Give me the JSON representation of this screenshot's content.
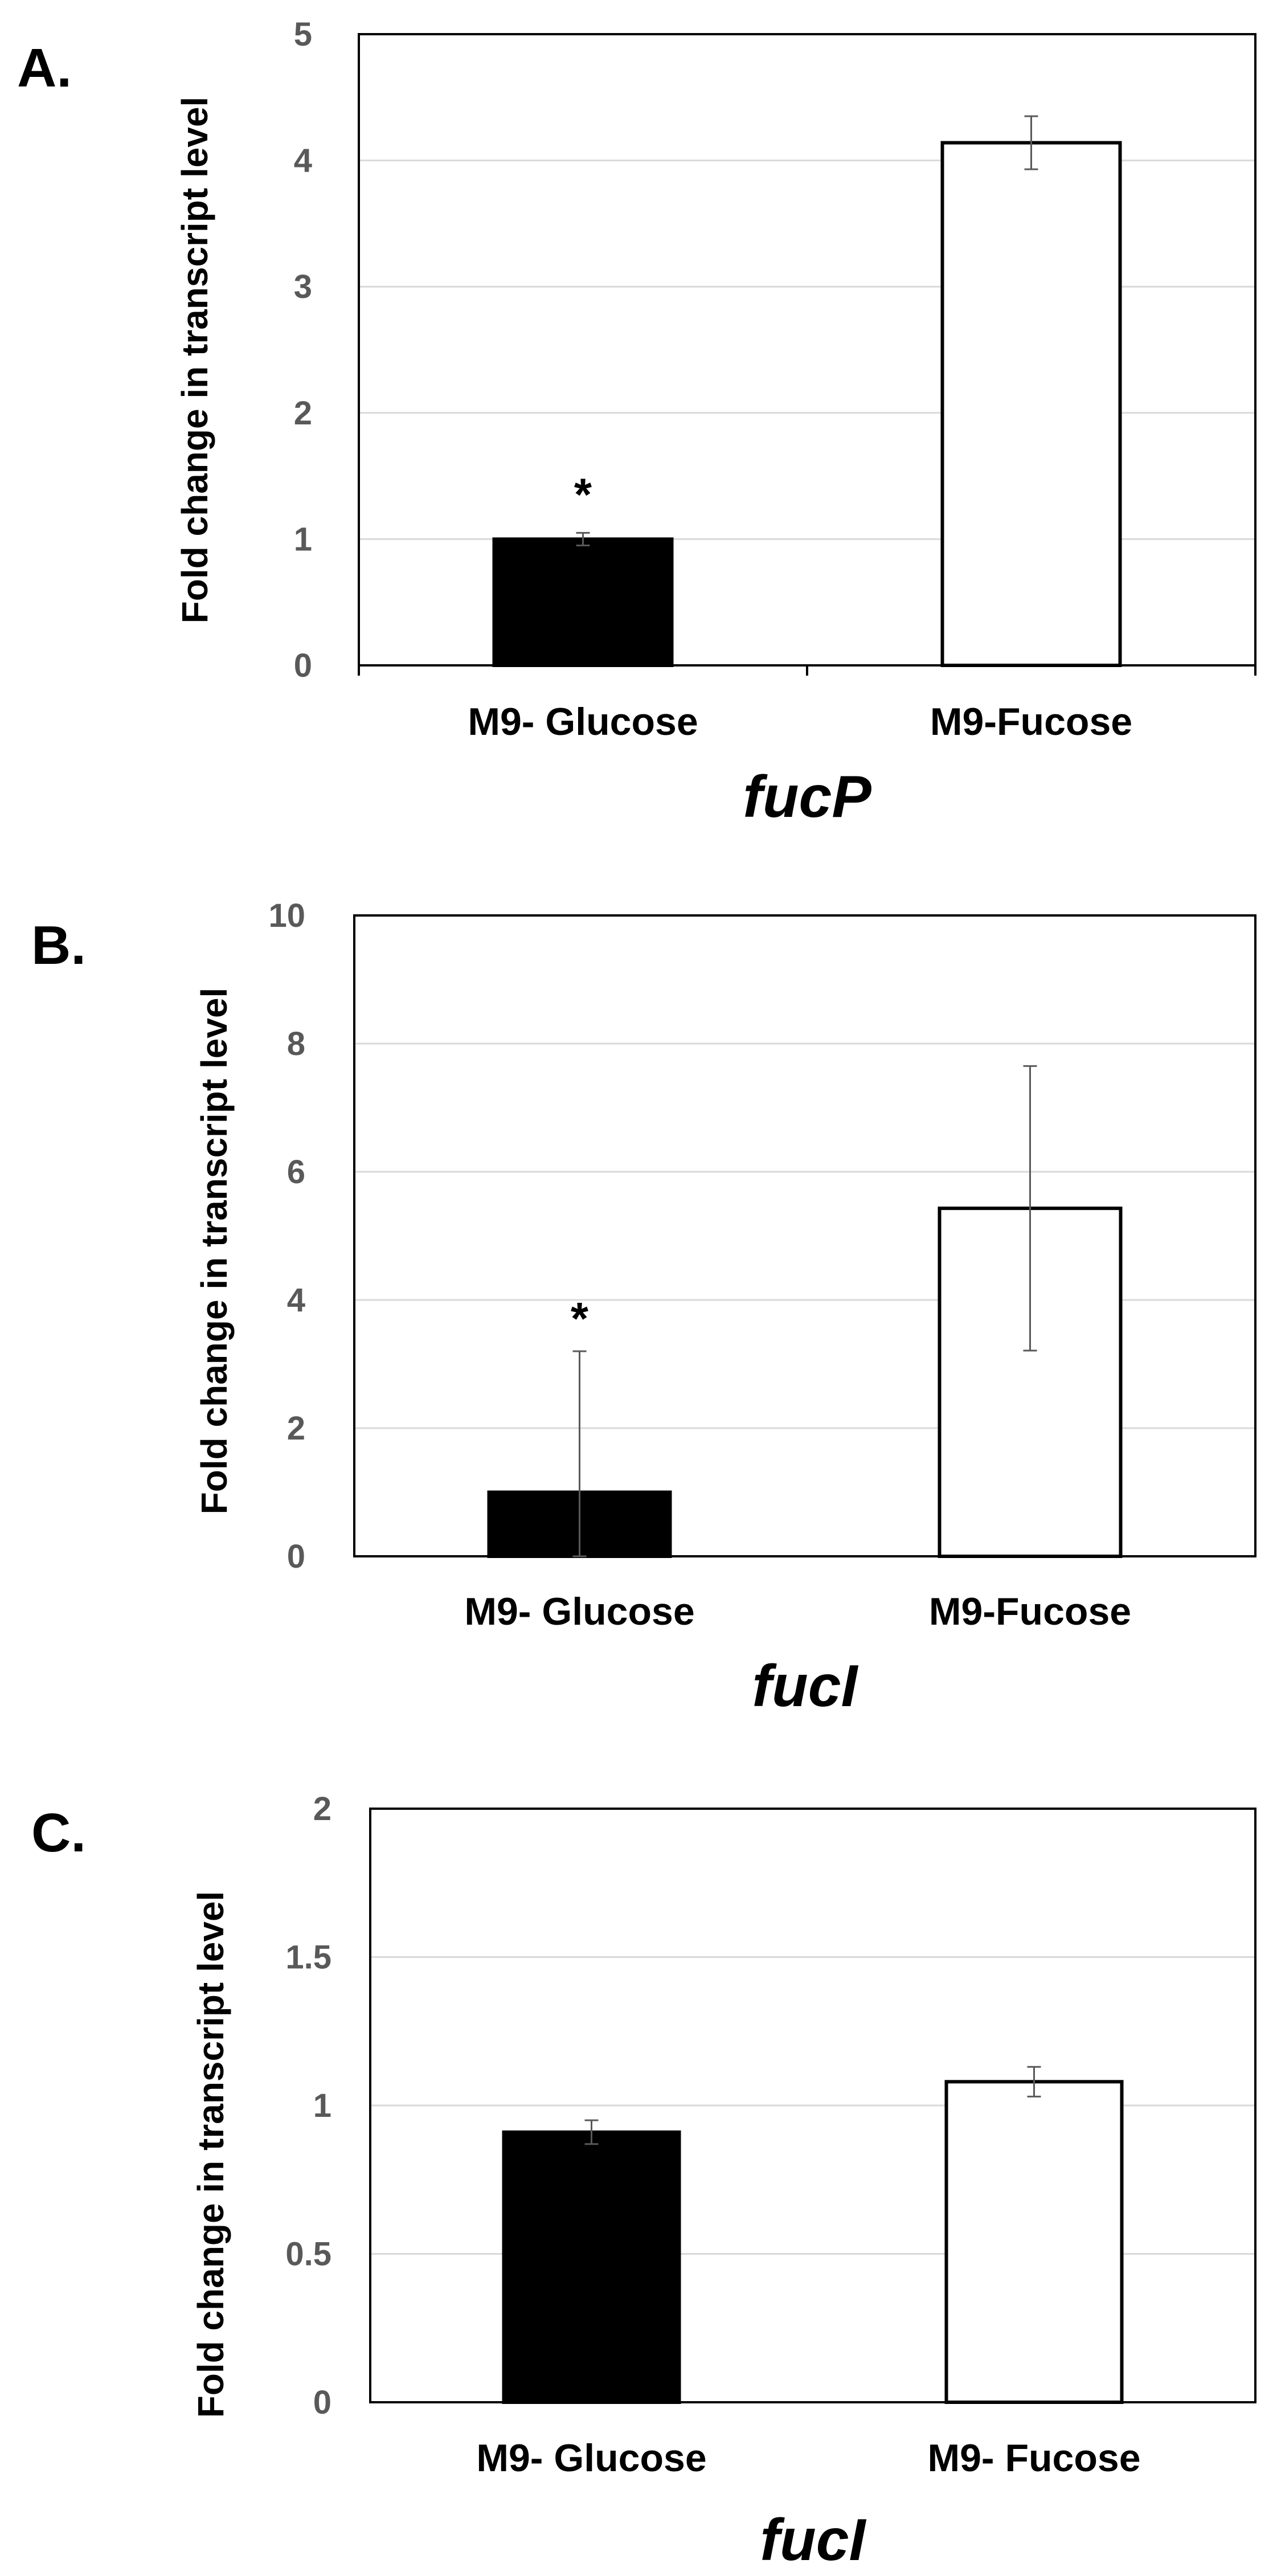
{
  "colors": {
    "bar_fill_glucose": "#000000",
    "bar_fill_fucose": "#ffffff",
    "bar_stroke": "#000000",
    "grid": "#d9d9d9",
    "error_bar": "#595959",
    "tick_text": "#595959"
  },
  "chart_data": [
    {
      "type": "bar",
      "panel_label": "A.",
      "ylabel": "Fold change in transcript level",
      "xlabel": "fucP",
      "ylim": [
        0,
        5
      ],
      "yticks": [
        "0",
        "1",
        "2",
        "3",
        "4",
        "5"
      ],
      "grid": true,
      "categories": [
        "M9- Glucose",
        "M9-Fucose"
      ],
      "values": [
        1.0,
        4.14
      ],
      "errors": [
        0.05,
        0.21
      ],
      "annotations": [
        "*",
        ""
      ]
    },
    {
      "type": "bar",
      "panel_label": "B.",
      "ylabel": "Fold change in transcript level",
      "xlabel": "fucI",
      "ylim": [
        0,
        10
      ],
      "yticks": [
        "0",
        "2",
        "4",
        "6",
        "8",
        "10"
      ],
      "grid": true,
      "categories": [
        "M9- Glucose",
        "M9-Fucose"
      ],
      "values": [
        1.0,
        5.43
      ],
      "errors": [
        2.2,
        2.22
      ],
      "annotations": [
        "*",
        ""
      ]
    },
    {
      "type": "bar",
      "panel_label": "C.",
      "ylabel": "Fold change in transcript level",
      "xlabel": "fucI",
      "ylim": [
        0,
        2
      ],
      "yticks": [
        "0",
        "0.5",
        "1",
        "1.5",
        "2"
      ],
      "grid": true,
      "categories": [
        "M9- Glucose",
        "M9- Fucose"
      ],
      "values": [
        0.91,
        1.08
      ],
      "errors": [
        0.04,
        0.05
      ],
      "annotations": [
        "",
        ""
      ]
    }
  ]
}
